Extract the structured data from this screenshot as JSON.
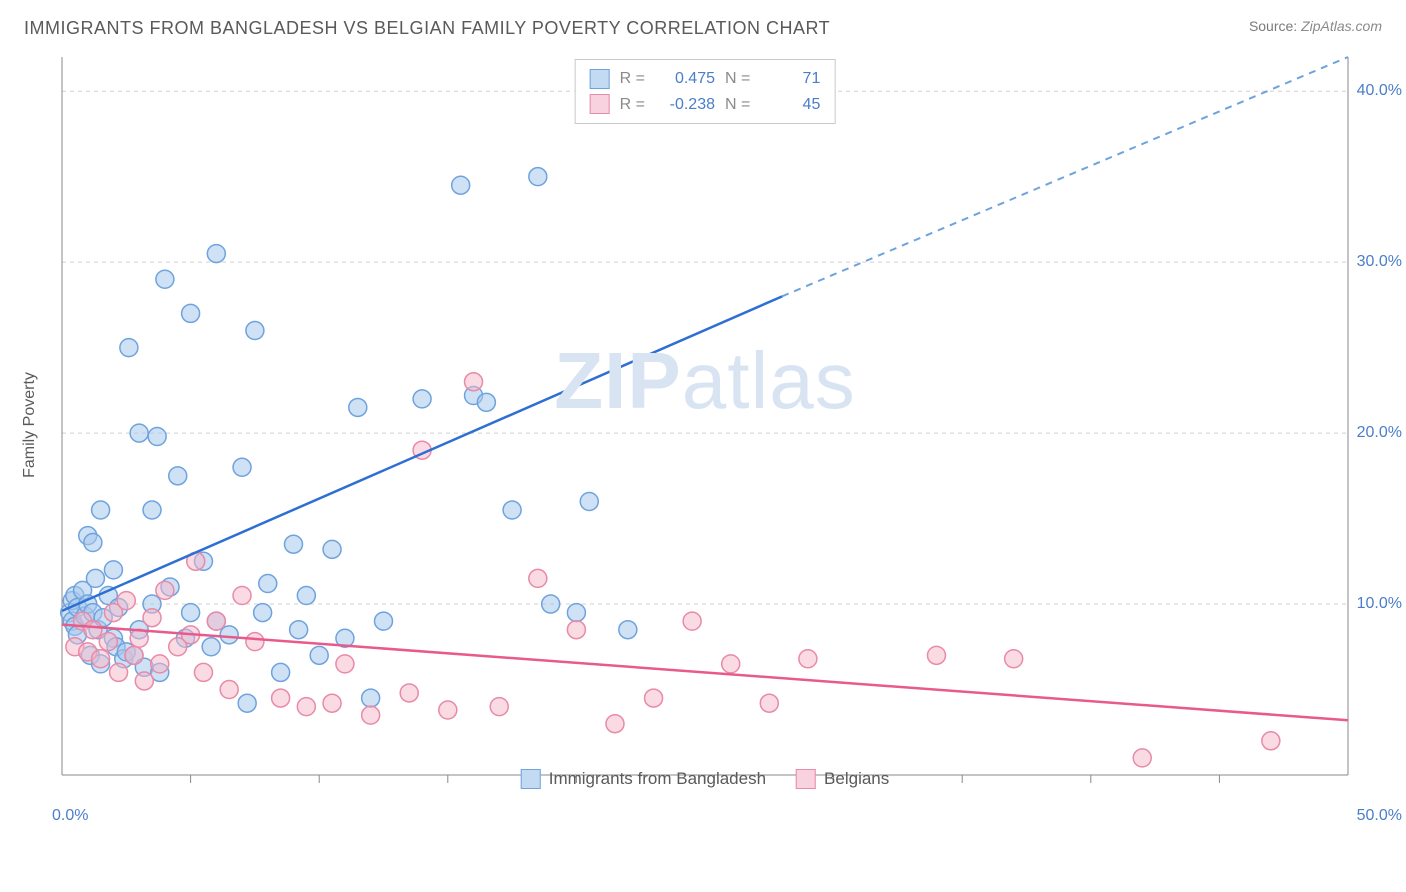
{
  "title": "IMMIGRANTS FROM BANGLADESH VS BELGIAN FAMILY POVERTY CORRELATION CHART",
  "source_label": "Source:",
  "source_value": "ZipAtlas.com",
  "ylabel": "Family Poverty",
  "watermark_zip": "ZIP",
  "watermark_atlas": "atlas",
  "chart": {
    "type": "scatter",
    "xlim": [
      0,
      50
    ],
    "ylim": [
      0,
      42
    ],
    "xtick_left": "0.0%",
    "xtick_right": "50.0%",
    "yticks": [
      {
        "v": 10,
        "label": "10.0%"
      },
      {
        "v": 20,
        "label": "20.0%"
      },
      {
        "v": 30,
        "label": "30.0%"
      },
      {
        "v": 40,
        "label": "40.0%"
      }
    ],
    "xminor": [
      5,
      10,
      15,
      20,
      25,
      30,
      35,
      40,
      45
    ],
    "marker_radius": 9,
    "background_color": "#ffffff",
    "grid_color": "#d0d0d0",
    "series": [
      {
        "name": "Immigrants from Bangladesh",
        "color_fill": "#a8c8ec",
        "color_stroke": "#6fa3dd",
        "R": "0.475",
        "N": "71",
        "trend": {
          "x1": 0,
          "y1": 9.6,
          "x2": 28,
          "y2": 28,
          "dash_to_x": 50,
          "dash_to_y": 42.5
        },
        "points": [
          [
            0.3,
            9.5
          ],
          [
            0.4,
            10.2
          ],
          [
            0.4,
            9.0
          ],
          [
            0.5,
            8.7
          ],
          [
            0.5,
            10.5
          ],
          [
            0.6,
            9.8
          ],
          [
            0.6,
            8.2
          ],
          [
            0.8,
            10.8
          ],
          [
            0.9,
            9.3
          ],
          [
            1.0,
            14.0
          ],
          [
            1.0,
            10.0
          ],
          [
            1.1,
            7.0
          ],
          [
            1.2,
            13.6
          ],
          [
            1.2,
            9.5
          ],
          [
            1.3,
            11.5
          ],
          [
            1.4,
            8.5
          ],
          [
            1.5,
            15.5
          ],
          [
            1.5,
            6.5
          ],
          [
            1.6,
            9.2
          ],
          [
            1.8,
            10.5
          ],
          [
            2.0,
            12.0
          ],
          [
            2.0,
            8.0
          ],
          [
            2.1,
            7.5
          ],
          [
            2.2,
            9.8
          ],
          [
            2.4,
            6.8
          ],
          [
            2.5,
            7.2
          ],
          [
            2.6,
            25.0
          ],
          [
            2.8,
            7.0
          ],
          [
            3.0,
            20.0
          ],
          [
            3.0,
            8.5
          ],
          [
            3.2,
            6.3
          ],
          [
            3.5,
            15.5
          ],
          [
            3.5,
            10.0
          ],
          [
            3.7,
            19.8
          ],
          [
            3.8,
            6.0
          ],
          [
            4.0,
            29.0
          ],
          [
            4.2,
            11.0
          ],
          [
            4.5,
            17.5
          ],
          [
            4.8,
            8.0
          ],
          [
            5.0,
            27.0
          ],
          [
            5.0,
            9.5
          ],
          [
            5.5,
            12.5
          ],
          [
            5.8,
            7.5
          ],
          [
            6.0,
            30.5
          ],
          [
            6.0,
            9.0
          ],
          [
            6.5,
            8.2
          ],
          [
            7.0,
            18.0
          ],
          [
            7.2,
            4.2
          ],
          [
            7.5,
            26.0
          ],
          [
            7.8,
            9.5
          ],
          [
            8.0,
            11.2
          ],
          [
            8.5,
            6.0
          ],
          [
            9.0,
            13.5
          ],
          [
            9.2,
            8.5
          ],
          [
            9.5,
            10.5
          ],
          [
            10.0,
            7.0
          ],
          [
            10.5,
            13.2
          ],
          [
            11.0,
            8.0
          ],
          [
            11.5,
            21.5
          ],
          [
            12.0,
            4.5
          ],
          [
            12.5,
            9.0
          ],
          [
            14.0,
            22.0
          ],
          [
            15.5,
            34.5
          ],
          [
            16.0,
            22.2
          ],
          [
            16.5,
            21.8
          ],
          [
            17.5,
            15.5
          ],
          [
            18.5,
            35.0
          ],
          [
            19.0,
            10.0
          ],
          [
            20.0,
            9.5
          ],
          [
            20.5,
            16.0
          ],
          [
            22.0,
            8.5
          ]
        ]
      },
      {
        "name": "Belgians",
        "color_fill": "#f5b8c9",
        "color_stroke": "#e88aa8",
        "R": "-0.238",
        "N": "45",
        "trend": {
          "x1": 0,
          "y1": 8.8,
          "x2": 50,
          "y2": 3.2
        },
        "points": [
          [
            0.5,
            7.5
          ],
          [
            0.8,
            9.0
          ],
          [
            1.0,
            7.2
          ],
          [
            1.2,
            8.5
          ],
          [
            1.5,
            6.8
          ],
          [
            1.8,
            7.8
          ],
          [
            2.0,
            9.5
          ],
          [
            2.2,
            6.0
          ],
          [
            2.5,
            10.2
          ],
          [
            2.8,
            7.0
          ],
          [
            3.0,
            8.0
          ],
          [
            3.2,
            5.5
          ],
          [
            3.5,
            9.2
          ],
          [
            3.8,
            6.5
          ],
          [
            4.0,
            10.8
          ],
          [
            4.5,
            7.5
          ],
          [
            5.0,
            8.2
          ],
          [
            5.2,
            12.5
          ],
          [
            5.5,
            6.0
          ],
          [
            6.0,
            9.0
          ],
          [
            6.5,
            5.0
          ],
          [
            7.0,
            10.5
          ],
          [
            7.5,
            7.8
          ],
          [
            8.5,
            4.5
          ],
          [
            9.5,
            4.0
          ],
          [
            10.5,
            4.2
          ],
          [
            11.0,
            6.5
          ],
          [
            12.0,
            3.5
          ],
          [
            13.5,
            4.8
          ],
          [
            14.0,
            19.0
          ],
          [
            15.0,
            3.8
          ],
          [
            16.0,
            23.0
          ],
          [
            17.0,
            4.0
          ],
          [
            18.5,
            11.5
          ],
          [
            20.0,
            8.5
          ],
          [
            21.5,
            3.0
          ],
          [
            23.0,
            4.5
          ],
          [
            24.5,
            9.0
          ],
          [
            26.0,
            6.5
          ],
          [
            27.5,
            4.2
          ],
          [
            29.0,
            6.8
          ],
          [
            34.0,
            7.0
          ],
          [
            37.0,
            6.8
          ],
          [
            42.0,
            1.0
          ],
          [
            47.0,
            2.0
          ]
        ]
      }
    ]
  },
  "stats_legend": {
    "r_label": "R  =",
    "n_label": "N  ="
  }
}
